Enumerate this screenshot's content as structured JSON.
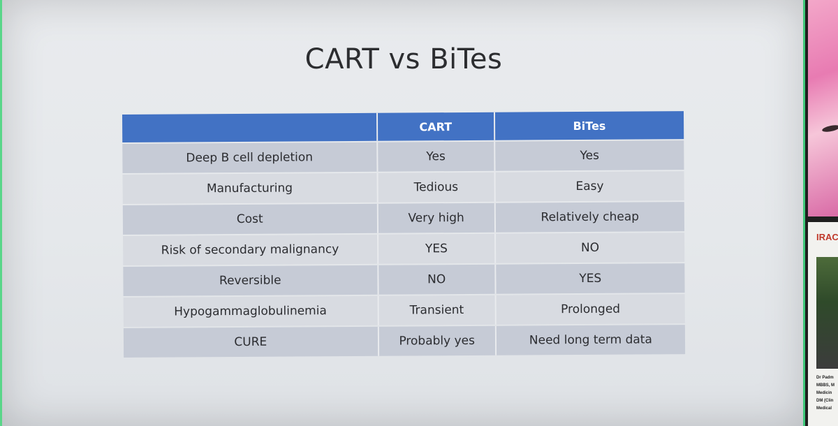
{
  "slide": {
    "title": "CART vs BiTes",
    "table": {
      "headers": [
        "",
        "CART",
        "BiTes"
      ],
      "rows": [
        {
          "label": "Deep B cell depletion",
          "cart": "Yes",
          "bites": "Yes"
        },
        {
          "label": "Manufacturing",
          "cart": "Tedious",
          "bites": "Easy"
        },
        {
          "label": "Cost",
          "cart": "Very high",
          "bites": "Relatively cheap"
        },
        {
          "label": "Risk of secondary malignancy",
          "cart": "YES",
          "bites": "NO"
        },
        {
          "label": "Reversible",
          "cart": "NO",
          "bites": "YES"
        },
        {
          "label": "Hypogammaglobulinemia",
          "cart": "Transient",
          "bites": "Prolonged"
        },
        {
          "label": "CURE",
          "cart": "Probably yes",
          "bites": "Need long term data"
        }
      ]
    }
  },
  "side_panel": {
    "logo_text": "IRACO",
    "caption_lines": [
      "Dr Padm",
      "MBBS, M",
      "Medicin",
      "DM (Clin",
      "Medical"
    ]
  },
  "colors": {
    "header_blue": "#4272c4",
    "row_dark": "#c6cbd6",
    "row_light": "#d8dbe1",
    "slide_bg": "#e9ebee",
    "frame_green": "#3fc97a"
  }
}
